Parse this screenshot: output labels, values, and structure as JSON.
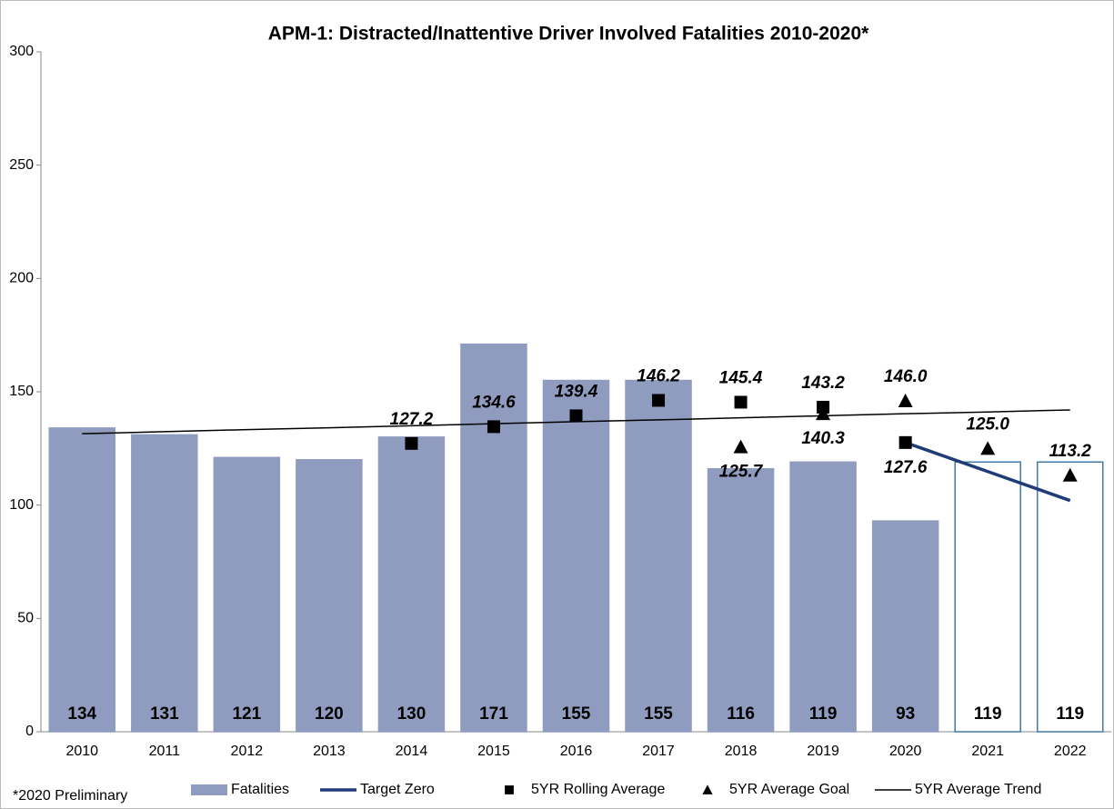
{
  "chart_data": {
    "type": "bar",
    "title": "APM-1: Distracted/Inattentive Driver Involved Fatalities 2010-2020*",
    "note": "*2020 Preliminary",
    "categories": [
      "2010",
      "2011",
      "2012",
      "2013",
      "2014",
      "2015",
      "2016",
      "2017",
      "2018",
      "2019",
      "2020",
      "2021",
      "2022"
    ],
    "ylim": [
      0,
      300
    ],
    "yticks": [
      0,
      50,
      100,
      150,
      200,
      250,
      300
    ],
    "grid": false,
    "legend": "bottom",
    "series": [
      {
        "name": "Fatalities",
        "type": "bar",
        "color": "#8f9cbf",
        "colors": [
          "#8f9cbf",
          "#8f9cbf",
          "#8f9cbf",
          "#8f9cbf",
          "#8f9cbf",
          "#8f9cbf",
          "#8f9cbf",
          "#8f9cbf",
          "#8f9cbf",
          "#8f9cbf",
          "#8f9cbf",
          "#ffffff",
          "#ffffff"
        ],
        "edgecolors": [
          "#8f9cbf",
          "#8f9cbf",
          "#8f9cbf",
          "#8f9cbf",
          "#8f9cbf",
          "#8f9cbf",
          "#8f9cbf",
          "#8f9cbf",
          "#8f9cbf",
          "#8f9cbf",
          "#8f9cbf",
          "#3f7aa8",
          "#3f7aa8"
        ],
        "values": [
          134,
          131,
          121,
          120,
          130,
          171,
          155,
          155,
          116,
          119,
          93,
          119,
          119
        ]
      },
      {
        "name": "Target Zero",
        "type": "line",
        "color": "#1f3c78",
        "width": 3.5,
        "values": [
          null,
          null,
          null,
          null,
          null,
          null,
          null,
          null,
          null,
          null,
          127.6,
          114.8,
          102
        ]
      },
      {
        "name": "5YR Rolling Average",
        "type": "scatter",
        "marker": "square",
        "color": "#000000",
        "values": [
          null,
          null,
          null,
          null,
          127.2,
          134.6,
          139.4,
          146.2,
          145.4,
          143.2,
          127.6,
          null,
          null
        ]
      },
      {
        "name": "5YR Average Goal",
        "type": "scatter",
        "marker": "triangle",
        "color": "#000000",
        "values": [
          null,
          null,
          null,
          null,
          null,
          null,
          null,
          null,
          125.7,
          140.3,
          146,
          125,
          113.2
        ],
        "value_labels": [
          null,
          null,
          null,
          null,
          null,
          null,
          null,
          null,
          "125.7",
          "140.3",
          "146.0",
          "125.0",
          "113.2"
        ]
      },
      {
        "name": "5YR Average Trend",
        "type": "line",
        "color": "#000000",
        "width": 1.5,
        "values": [
          131.5,
          132.4,
          133.3,
          134.1,
          135.0,
          135.9,
          136.8,
          137.6,
          138.5,
          139.4,
          140.3,
          141.1,
          142.0
        ]
      }
    ]
  }
}
